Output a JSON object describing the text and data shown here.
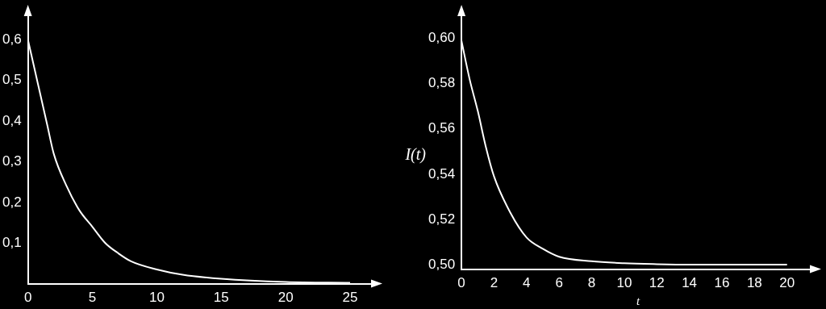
{
  "chart_data": [
    {
      "type": "line",
      "x": [
        0,
        0.5,
        1,
        1.5,
        2,
        3,
        4,
        5,
        6,
        7,
        8,
        10,
        12,
        15,
        20,
        25
      ],
      "series": [
        {
          "color": "#ffffff",
          "values": [
            0.6,
            0.53,
            0.46,
            0.39,
            0.32,
            0.24,
            0.18,
            0.14,
            0.1,
            0.075,
            0.055,
            0.035,
            0.022,
            0.012,
            0.004,
            0.002
          ]
        }
      ],
      "xlim": [
        0,
        27
      ],
      "ylim": [
        0,
        0.67
      ],
      "xticks": [
        0,
        5,
        10,
        15,
        20,
        25
      ],
      "yticks": [
        {
          "value": 0.1,
          "label": "0,1"
        },
        {
          "value": 0.2,
          "label": "0,2"
        },
        {
          "value": 0.3,
          "label": "0,3"
        },
        {
          "value": 0.4,
          "label": "0,4"
        },
        {
          "value": 0.5,
          "label": "0,5"
        },
        {
          "value": 0.6,
          "label": "0,6"
        }
      ],
      "grid": false,
      "legend": false,
      "marker": "none",
      "line_style": "solid"
    },
    {
      "type": "line",
      "x": [
        0,
        0.5,
        1,
        1.5,
        2,
        3,
        4,
        5,
        6,
        8,
        10,
        12,
        14,
        16,
        18,
        20
      ],
      "series": [
        {
          "color": "#ffffff",
          "values": [
            0.599,
            0.582,
            0.568,
            0.552,
            0.539,
            0.523,
            0.512,
            0.507,
            0.5035,
            0.5015,
            0.5006,
            0.5002,
            0.5,
            0.5,
            0.5,
            0.5
          ]
        }
      ],
      "xlabel": "t",
      "ylabel": "I(t)",
      "xlim": [
        0,
        21.7
      ],
      "ylim": [
        0.498,
        0.612
      ],
      "xticks": [
        0,
        2,
        4,
        6,
        8,
        10,
        12,
        14,
        16,
        18,
        20
      ],
      "yticks": [
        {
          "value": 0.5,
          "label": "0,50"
        },
        {
          "value": 0.52,
          "label": "0,52"
        },
        {
          "value": 0.54,
          "label": "0,54"
        },
        {
          "value": 0.56,
          "label": "0,56"
        },
        {
          "value": 0.58,
          "label": "0,58"
        },
        {
          "value": 0.6,
          "label": "0,60"
        }
      ],
      "grid": false,
      "legend": false,
      "marker": "none",
      "line_style": "solid"
    }
  ]
}
